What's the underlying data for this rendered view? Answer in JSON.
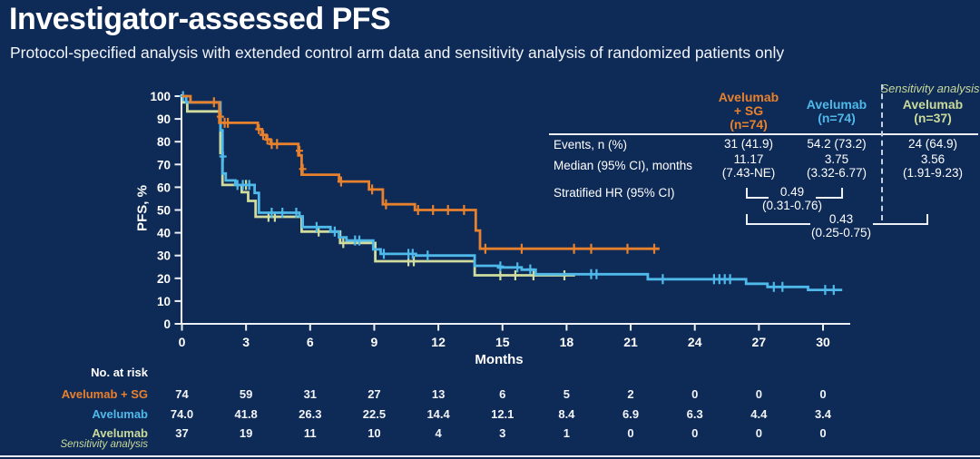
{
  "slide": {
    "title": "Investigator-assessed PFS",
    "subtitle": "Protocol-specified analysis with extended control arm data and sensitivity analysis of randomized patients only"
  },
  "colors": {
    "background": "#0E2A57",
    "avelumab_sg": "#E8812D",
    "avelumab": "#4FB9E9",
    "avelumab_sensitivity": "#CFDC9E",
    "axis": "#EDF0F5"
  },
  "chart_data": {
    "type": "line",
    "subtype": "kaplan-meier-step",
    "xlabel": "Months",
    "ylabel": "PFS, %",
    "xlim": [
      0,
      31.5
    ],
    "ylim": [
      0,
      100
    ],
    "xticks": [
      0,
      3,
      6,
      9,
      12,
      15,
      18,
      21,
      24,
      27,
      30
    ],
    "yticks": [
      0,
      10,
      20,
      30,
      40,
      50,
      60,
      70,
      80,
      90,
      100
    ],
    "grid": false,
    "series": [
      {
        "key": "avelumab_sg",
        "name": "Avelumab + SG",
        "color": "#E8812D",
        "steps": [
          [
            0,
            100
          ],
          [
            0.4,
            100
          ],
          [
            0.4,
            97.3
          ],
          [
            1.75,
            97.3
          ],
          [
            1.75,
            88.3
          ],
          [
            3.55,
            88.3
          ],
          [
            3.55,
            85.5
          ],
          [
            3.75,
            85.5
          ],
          [
            3.75,
            83
          ],
          [
            3.95,
            83
          ],
          [
            3.95,
            81
          ],
          [
            4.15,
            81
          ],
          [
            4.15,
            79
          ],
          [
            5.45,
            79
          ],
          [
            5.45,
            74
          ],
          [
            5.6,
            74
          ],
          [
            5.6,
            65.5
          ],
          [
            7.35,
            65.5
          ],
          [
            7.35,
            62.5
          ],
          [
            8.75,
            62.5
          ],
          [
            8.75,
            59
          ],
          [
            9.4,
            59
          ],
          [
            9.4,
            52.5
          ],
          [
            10.9,
            52.5
          ],
          [
            10.9,
            50
          ],
          [
            13.75,
            50
          ],
          [
            13.75,
            41
          ],
          [
            13.95,
            41
          ],
          [
            13.95,
            33
          ],
          [
            22.35,
            33
          ]
        ],
        "censors": [
          [
            1.5,
            97.3
          ],
          [
            1.8,
            91
          ],
          [
            2.0,
            88.3
          ],
          [
            2.15,
            88.3
          ],
          [
            3.6,
            85.5
          ],
          [
            3.8,
            83
          ],
          [
            4.0,
            81
          ],
          [
            4.2,
            79
          ],
          [
            4.45,
            79
          ],
          [
            5.5,
            76
          ],
          [
            5.65,
            68
          ],
          [
            7.45,
            62.5
          ],
          [
            8.9,
            59
          ],
          [
            9.55,
            52.5
          ],
          [
            11.05,
            50
          ],
          [
            11.75,
            50
          ],
          [
            12.45,
            50
          ],
          [
            13.2,
            50
          ],
          [
            14.2,
            33
          ],
          [
            15.9,
            33
          ],
          [
            18.35,
            33
          ],
          [
            19.15,
            33
          ],
          [
            20.85,
            33
          ],
          [
            22.1,
            33
          ]
        ]
      },
      {
        "key": "avelumab",
        "name": "Avelumab",
        "color": "#4FB9E9",
        "steps": [
          [
            0,
            100
          ],
          [
            0.2,
            100
          ],
          [
            0.2,
            97.3
          ],
          [
            1.8,
            97.3
          ],
          [
            1.8,
            85
          ],
          [
            1.9,
            85
          ],
          [
            1.9,
            66
          ],
          [
            2.05,
            66
          ],
          [
            2.05,
            63
          ],
          [
            2.5,
            63
          ],
          [
            2.5,
            61
          ],
          [
            3.4,
            61
          ],
          [
            3.4,
            57.5
          ],
          [
            3.6,
            57.5
          ],
          [
            3.6,
            48.8
          ],
          [
            5.5,
            48.8
          ],
          [
            5.5,
            47.2
          ],
          [
            5.65,
            47.2
          ],
          [
            5.65,
            42.5
          ],
          [
            6.95,
            42.5
          ],
          [
            6.95,
            40.5
          ],
          [
            7.35,
            40.5
          ],
          [
            7.35,
            38
          ],
          [
            7.7,
            38
          ],
          [
            7.7,
            36.6
          ],
          [
            8.95,
            36.6
          ],
          [
            8.95,
            32.7
          ],
          [
            9.3,
            32.7
          ],
          [
            9.3,
            30.7
          ],
          [
            10.95,
            30.7
          ],
          [
            10.95,
            30
          ],
          [
            13.7,
            30
          ],
          [
            13.7,
            25.5
          ],
          [
            14.8,
            25.5
          ],
          [
            14.8,
            24.8
          ],
          [
            15.9,
            24.8
          ],
          [
            15.9,
            23.8
          ],
          [
            16.55,
            23.8
          ],
          [
            16.55,
            21.8
          ],
          [
            21.8,
            21.8
          ],
          [
            21.8,
            19.6
          ],
          [
            26.4,
            19.6
          ],
          [
            26.4,
            17.6
          ],
          [
            27.4,
            17.6
          ],
          [
            27.4,
            16.2
          ],
          [
            29.3,
            16.2
          ],
          [
            29.3,
            14.9
          ],
          [
            30.9,
            14.9
          ]
        ],
        "censors": [
          [
            0.05,
            100
          ],
          [
            1.92,
            73.5
          ],
          [
            2.6,
            61
          ],
          [
            2.85,
            61
          ],
          [
            3.15,
            61
          ],
          [
            4.2,
            48.8
          ],
          [
            4.7,
            48.8
          ],
          [
            5.35,
            48.8
          ],
          [
            6.3,
            42.5
          ],
          [
            7.15,
            40.5
          ],
          [
            8.1,
            36.6
          ],
          [
            8.3,
            36.6
          ],
          [
            9.45,
            30.7
          ],
          [
            10.6,
            30.7
          ],
          [
            10.8,
            30.7
          ],
          [
            11.5,
            30
          ],
          [
            14.9,
            25.2
          ],
          [
            15.7,
            24.8
          ],
          [
            16.3,
            23.9
          ],
          [
            19.15,
            21.8
          ],
          [
            19.4,
            21.8
          ],
          [
            22.5,
            19.6
          ],
          [
            24.9,
            19.6
          ],
          [
            25.15,
            19.6
          ],
          [
            25.4,
            19.6
          ],
          [
            25.65,
            19.6
          ],
          [
            27.7,
            16.2
          ],
          [
            28.1,
            16.2
          ],
          [
            30.1,
            14.9
          ],
          [
            30.5,
            14.9
          ]
        ]
      },
      {
        "key": "avelumab_sensitivity",
        "name": "Avelumab (Sensitivity analysis)",
        "color": "#CFDC9E",
        "steps": [
          [
            0,
            97.3
          ],
          [
            0.25,
            97.3
          ],
          [
            0.25,
            93.3
          ],
          [
            1.8,
            93.3
          ],
          [
            1.8,
            75
          ],
          [
            1.9,
            75
          ],
          [
            1.9,
            61
          ],
          [
            2.8,
            61
          ],
          [
            2.8,
            57.8
          ],
          [
            3.1,
            57.8
          ],
          [
            3.1,
            54
          ],
          [
            3.45,
            54
          ],
          [
            3.45,
            47
          ],
          [
            5.6,
            47
          ],
          [
            5.6,
            40.5
          ],
          [
            7.4,
            40.5
          ],
          [
            7.4,
            35.5
          ],
          [
            9.05,
            35.5
          ],
          [
            9.05,
            27.5
          ],
          [
            13.7,
            27.5
          ],
          [
            13.7,
            21.3
          ],
          [
            18.4,
            21.3
          ]
        ],
        "censors": [
          [
            3.0,
            61
          ],
          [
            4.05,
            47
          ],
          [
            4.35,
            47
          ],
          [
            6.4,
            40.5
          ],
          [
            7.55,
            35.5
          ],
          [
            10.6,
            27.5
          ],
          [
            10.85,
            27.5
          ],
          [
            14.9,
            21.3
          ],
          [
            15.6,
            21.3
          ],
          [
            16.45,
            21.3
          ],
          [
            17.9,
            21.3
          ]
        ]
      }
    ]
  },
  "stats_table": {
    "sensitivity_note": "Sensitivity analysis",
    "columns": [
      {
        "key": "avelumab_sg",
        "color": "#E8812D",
        "label_lines": [
          "Avelumab",
          "+ SG",
          "(n=74)"
        ]
      },
      {
        "key": "avelumab",
        "color": "#4FB9E9",
        "label_lines": [
          "Avelumab",
          "(n=74)"
        ]
      },
      {
        "key": "avelumab_sensitivity",
        "color": "#C9DA9A",
        "label_lines": [
          "Avelumab",
          "(n=37)"
        ]
      }
    ],
    "rows": [
      {
        "label": "Events, n (%)",
        "values": [
          "31 (41.9)",
          "54.2 (73.2)",
          "24 (64.9)"
        ]
      },
      {
        "label": "Median (95% CI), months",
        "values": [
          [
            "11.17",
            "(7.43-NE)"
          ],
          [
            "3.75",
            "(3.32-6.77)"
          ],
          [
            "3.56",
            "(1.91-9.23)"
          ]
        ]
      },
      {
        "label": "Stratified HR (95% CI)"
      }
    ],
    "hr_inner": {
      "value": "0.49",
      "ci": "(0.31-0.76)"
    },
    "hr_outer": {
      "value": "0.43",
      "ci": "(0.25-0.75)"
    }
  },
  "risk_table": {
    "title": "No. at risk",
    "months": [
      0,
      3,
      6,
      9,
      12,
      15,
      18,
      21,
      24,
      27,
      30
    ],
    "rows": [
      {
        "label": "Avelumab + SG",
        "sub": "",
        "color": "#E8812D",
        "values": [
          "74",
          "59",
          "31",
          "27",
          "13",
          "6",
          "5",
          "2",
          "0",
          "0",
          "0"
        ]
      },
      {
        "label": "Avelumab",
        "sub": "",
        "color": "#4FB9E9",
        "values": [
          "74.0",
          "41.8",
          "26.3",
          "22.5",
          "14.4",
          "12.1",
          "8.4",
          "6.9",
          "6.3",
          "4.4",
          "3.4"
        ]
      },
      {
        "label": "Avelumab",
        "sub": "Sensitivity analysis",
        "color": "#C9DA9A",
        "values": [
          "37",
          "19",
          "11",
          "10",
          "4",
          "3",
          "1",
          "0",
          "0",
          "0",
          "0"
        ]
      }
    ]
  }
}
